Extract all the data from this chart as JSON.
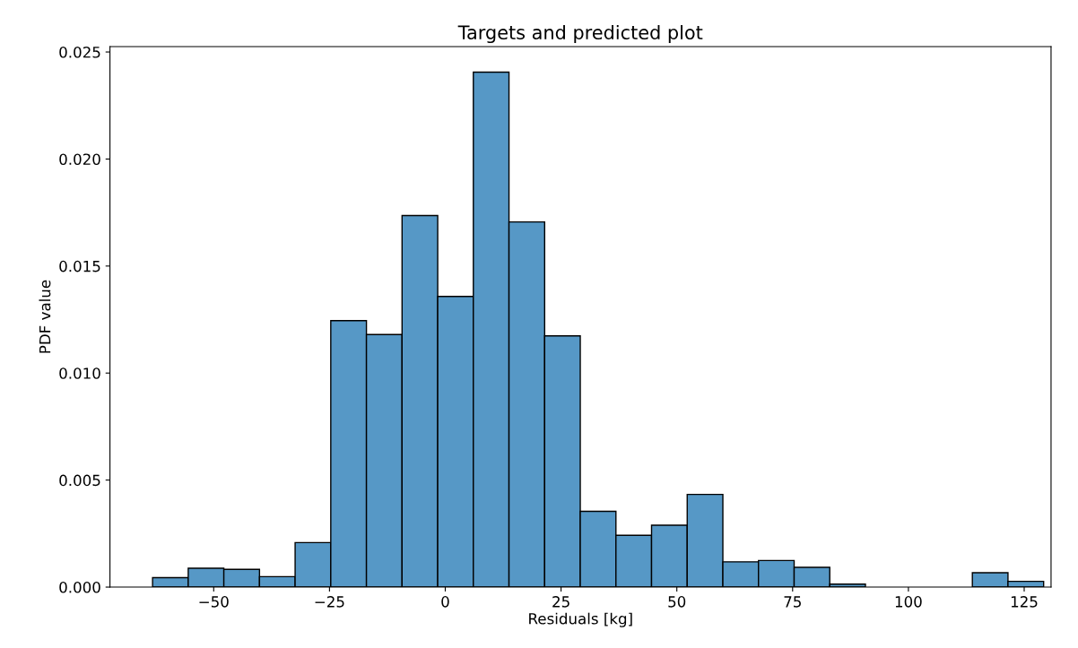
{
  "chart_data": {
    "type": "histogram",
    "title": "Targets and predicted plot",
    "xlabel": "Residuals [kg]",
    "ylabel": "PDF value",
    "bins": [
      -63.2,
      -55.5,
      -47.81,
      -40.11,
      -32.42,
      -24.72,
      -17.02,
      -9.33,
      -1.63,
      6.06,
      13.76,
      21.46,
      29.15,
      36.85,
      44.54,
      52.24,
      59.94,
      67.63,
      75.33,
      83.02,
      90.72,
      98.42,
      106.11,
      113.81,
      121.5,
      129.2
    ],
    "values": [
      0.00044,
      0.00088,
      0.00083,
      0.00049,
      0.00208,
      0.01245,
      0.0118,
      0.01736,
      0.01358,
      0.02406,
      0.01706,
      0.01174,
      0.00354,
      0.00242,
      0.00289,
      0.00433,
      0.00118,
      0.00124,
      0.00092,
      0.00014,
      0,
      0,
      0,
      0.00067,
      0.00027
    ],
    "color": "#5698c6",
    "xlim": [
      -72.4,
      130.8
    ],
    "ylim": [
      0,
      0.02525
    ],
    "xticks": [
      {
        "value": -50,
        "label": "−50"
      },
      {
        "value": -25,
        "label": "−25"
      },
      0,
      25,
      50,
      75,
      100,
      125
    ],
    "yticks": [
      {
        "value": 0,
        "label": "0.000"
      },
      {
        "value": 0.005,
        "label": "0.005"
      },
      {
        "value": 0.01,
        "label": "0.010"
      },
      {
        "value": 0.015,
        "label": "0.015"
      },
      {
        "value": 0.02,
        "label": "0.020"
      },
      {
        "value": 0.025,
        "label": "0.025"
      }
    ],
    "grid": false
  }
}
